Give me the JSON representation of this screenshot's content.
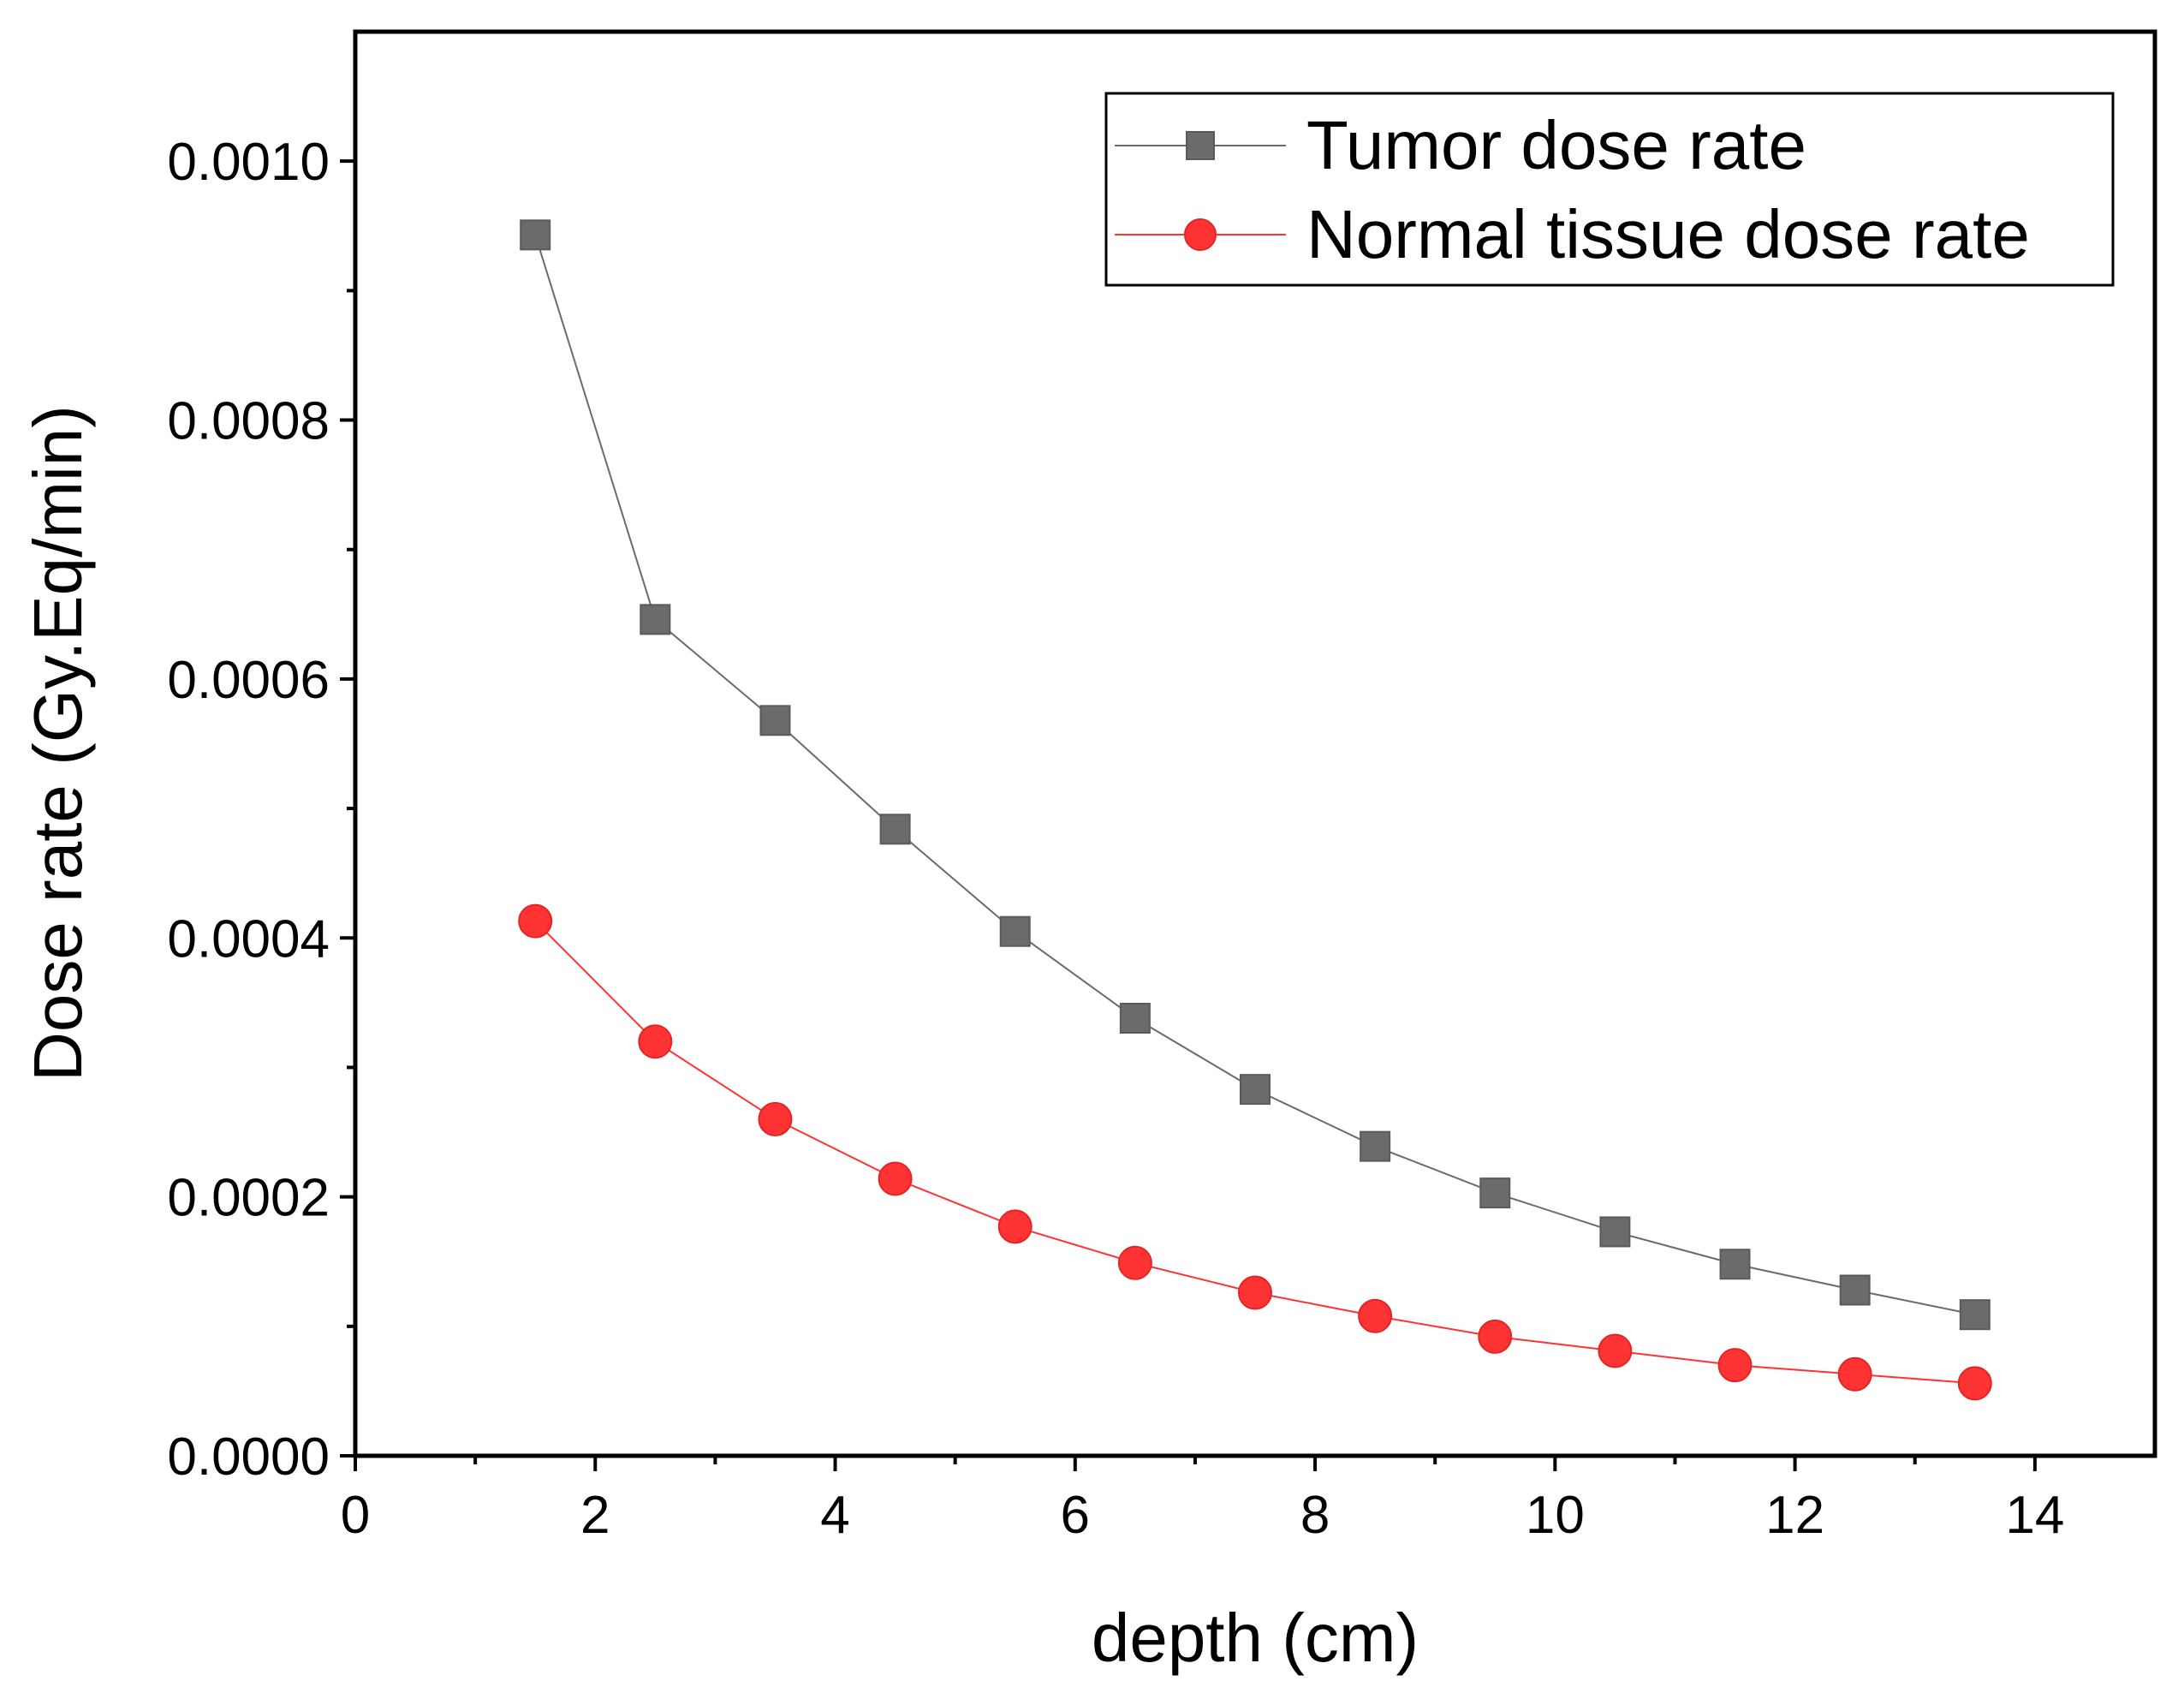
{
  "chart_data": {
    "type": "line",
    "title": "",
    "xlabel": "depth (cm)",
    "ylabel": "Dose rate (Gy.Eq/min)",
    "xlim": [
      0,
      15
    ],
    "ylim": [
      0,
      0.0011
    ],
    "x_ticks": [
      0,
      2,
      4,
      6,
      8,
      10,
      12,
      14
    ],
    "x_tick_labels": [
      "0",
      "2",
      "4",
      "6",
      "8",
      "10",
      "12",
      "14"
    ],
    "y_ticks": [
      0,
      0.0002,
      0.0004,
      0.0006,
      0.0008,
      0.001
    ],
    "y_tick_labels": [
      "0.0000",
      "0.0002",
      "0.0004",
      "0.0006",
      "0.0008",
      "0.0010"
    ],
    "grid": false,
    "legend_position": "top-right",
    "x": [
      1.5,
      2.5,
      3.5,
      4.5,
      5.5,
      6.5,
      7.5,
      8.5,
      9.5,
      10.5,
      11.5,
      12.5,
      13.5
    ],
    "series": [
      {
        "name": "Tumor dose rate",
        "marker": "square",
        "color": "#6b6b6b",
        "values": [
          0.000943,
          0.000646,
          0.000568,
          0.000484,
          0.000405,
          0.000338,
          0.000283,
          0.000239,
          0.000203,
          0.000173,
          0.000148,
          0.000128,
          0.000109
        ]
      },
      {
        "name": "Normal tissue dose rate",
        "marker": "circle",
        "color": "#ff3333",
        "values": [
          0.000413,
          0.00032,
          0.00026,
          0.000214,
          0.000177,
          0.000149,
          0.000126,
          0.000108,
          9.2e-05,
          8.1e-05,
          7e-05,
          6.3e-05,
          5.6e-05
        ]
      }
    ]
  }
}
